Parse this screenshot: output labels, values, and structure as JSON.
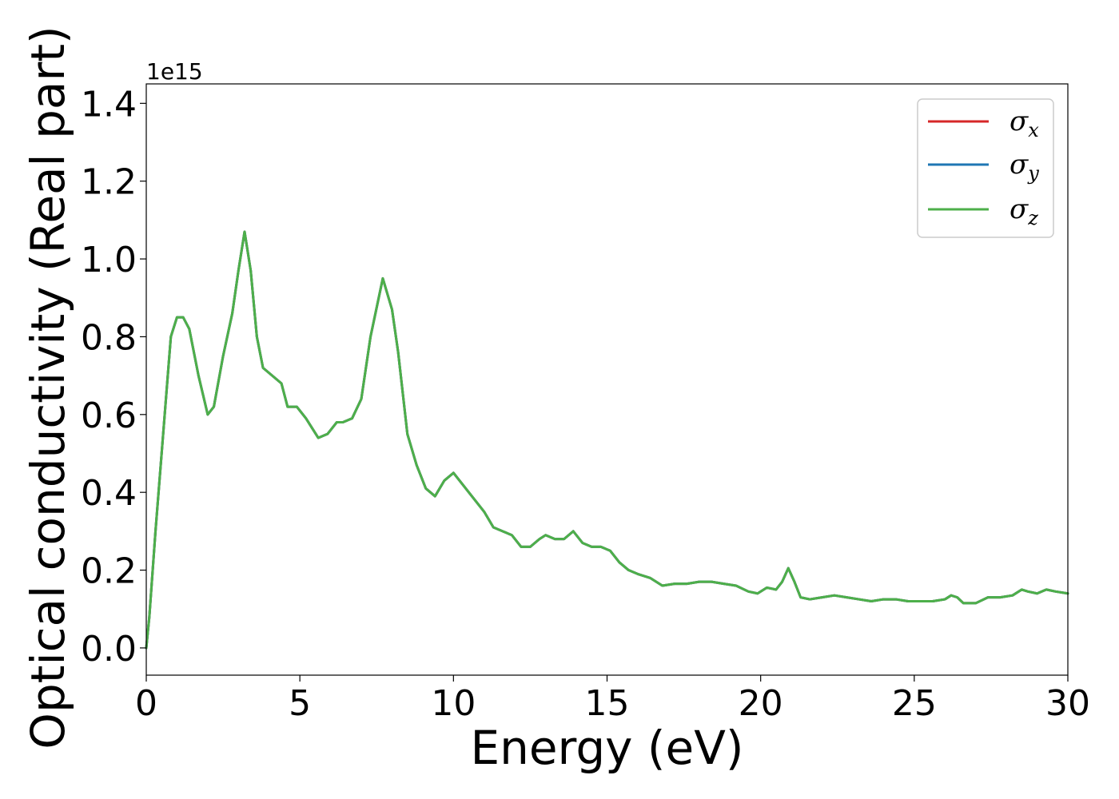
{
  "chart_data": {
    "type": "line",
    "title": "",
    "xlabel": "Energy (eV)",
    "ylabel": "Optical conductivity (Real part)",
    "y_offset_label": "1e15",
    "xlim": [
      0,
      30
    ],
    "ylim": [
      -0.07,
      1.45
    ],
    "x_ticks": [
      0,
      5,
      10,
      15,
      20,
      25,
      30
    ],
    "x_tick_labels": [
      "0",
      "5",
      "10",
      "15",
      "20",
      "25",
      "30"
    ],
    "y_ticks": [
      0.0,
      0.2,
      0.4,
      0.6,
      0.8,
      1.0,
      1.2,
      1.4
    ],
    "y_tick_labels": [
      "0.0",
      "0.2",
      "0.4",
      "0.6",
      "0.8",
      "1.0",
      "1.2",
      "1.4"
    ],
    "grid": false,
    "legend_position": "top-right",
    "x": [
      0.0,
      0.1,
      0.3,
      0.6,
      0.8,
      1.0,
      1.2,
      1.4,
      1.7,
      2.0,
      2.2,
      2.5,
      2.8,
      3.0,
      3.2,
      3.4,
      3.6,
      3.8,
      4.1,
      4.4,
      4.6,
      4.9,
      5.2,
      5.6,
      5.9,
      6.2,
      6.4,
      6.7,
      7.0,
      7.3,
      7.7,
      8.0,
      8.2,
      8.5,
      8.8,
      9.1,
      9.4,
      9.7,
      10.0,
      10.3,
      10.6,
      11.0,
      11.3,
      11.6,
      11.9,
      12.2,
      12.5,
      12.8,
      13.0,
      13.3,
      13.6,
      13.9,
      14.2,
      14.5,
      14.8,
      15.1,
      15.4,
      15.7,
      16.0,
      16.4,
      16.8,
      17.2,
      17.6,
      18.0,
      18.4,
      18.8,
      19.2,
      19.6,
      19.9,
      20.2,
      20.5,
      20.7,
      20.9,
      21.1,
      21.3,
      21.6,
      22.0,
      22.4,
      22.8,
      23.2,
      23.6,
      24.0,
      24.4,
      24.8,
      25.2,
      25.6,
      26.0,
      26.2,
      26.4,
      26.6,
      27.0,
      27.4,
      27.8,
      28.2,
      28.5,
      28.7,
      29.0,
      29.3,
      29.6,
      30.0
    ],
    "series": [
      {
        "name": "σx",
        "color": "#d62728",
        "values": [
          0.0,
          0.08,
          0.3,
          0.6,
          0.8,
          0.85,
          0.85,
          0.82,
          0.7,
          0.6,
          0.62,
          0.75,
          0.86,
          0.97,
          1.07,
          0.97,
          0.8,
          0.72,
          0.7,
          0.68,
          0.62,
          0.62,
          0.59,
          0.54,
          0.55,
          0.58,
          0.58,
          0.59,
          0.64,
          0.8,
          0.95,
          0.87,
          0.76,
          0.55,
          0.47,
          0.41,
          0.39,
          0.43,
          0.45,
          0.42,
          0.39,
          0.35,
          0.31,
          0.3,
          0.29,
          0.26,
          0.26,
          0.28,
          0.29,
          0.28,
          0.28,
          0.3,
          0.27,
          0.26,
          0.26,
          0.25,
          0.22,
          0.2,
          0.19,
          0.18,
          0.16,
          0.165,
          0.165,
          0.17,
          0.17,
          0.165,
          0.16,
          0.145,
          0.14,
          0.155,
          0.15,
          0.17,
          0.205,
          0.17,
          0.13,
          0.125,
          0.13,
          0.135,
          0.13,
          0.125,
          0.12,
          0.125,
          0.125,
          0.12,
          0.12,
          0.12,
          0.125,
          0.135,
          0.13,
          0.115,
          0.115,
          0.13,
          0.13,
          0.135,
          0.15,
          0.145,
          0.14,
          0.15,
          0.145,
          0.14
        ]
      },
      {
        "name": "σy",
        "color": "#1f77b4",
        "values": [
          0.0,
          0.08,
          0.3,
          0.6,
          0.8,
          0.85,
          0.85,
          0.82,
          0.7,
          0.6,
          0.62,
          0.75,
          0.86,
          0.97,
          1.07,
          0.97,
          0.8,
          0.72,
          0.7,
          0.68,
          0.62,
          0.62,
          0.59,
          0.54,
          0.55,
          0.58,
          0.58,
          0.59,
          0.64,
          0.8,
          0.95,
          0.87,
          0.76,
          0.55,
          0.47,
          0.41,
          0.39,
          0.43,
          0.45,
          0.42,
          0.39,
          0.35,
          0.31,
          0.3,
          0.29,
          0.26,
          0.26,
          0.28,
          0.29,
          0.28,
          0.28,
          0.3,
          0.27,
          0.26,
          0.26,
          0.25,
          0.22,
          0.2,
          0.19,
          0.18,
          0.16,
          0.165,
          0.165,
          0.17,
          0.17,
          0.165,
          0.16,
          0.145,
          0.14,
          0.155,
          0.15,
          0.17,
          0.205,
          0.17,
          0.13,
          0.125,
          0.13,
          0.135,
          0.13,
          0.125,
          0.12,
          0.125,
          0.125,
          0.12,
          0.12,
          0.12,
          0.125,
          0.135,
          0.13,
          0.115,
          0.115,
          0.13,
          0.13,
          0.135,
          0.15,
          0.145,
          0.14,
          0.15,
          0.145,
          0.14
        ]
      },
      {
        "name": "σz",
        "color": "#4daf4a",
        "values": [
          0.0,
          0.08,
          0.3,
          0.6,
          0.8,
          0.85,
          0.85,
          0.82,
          0.7,
          0.6,
          0.62,
          0.75,
          0.86,
          0.97,
          1.07,
          0.97,
          0.8,
          0.72,
          0.7,
          0.68,
          0.62,
          0.62,
          0.59,
          0.54,
          0.55,
          0.58,
          0.58,
          0.59,
          0.64,
          0.8,
          0.95,
          0.87,
          0.76,
          0.55,
          0.47,
          0.41,
          0.39,
          0.43,
          0.45,
          0.42,
          0.39,
          0.35,
          0.31,
          0.3,
          0.29,
          0.26,
          0.26,
          0.28,
          0.29,
          0.28,
          0.28,
          0.3,
          0.27,
          0.26,
          0.26,
          0.25,
          0.22,
          0.2,
          0.19,
          0.18,
          0.16,
          0.165,
          0.165,
          0.17,
          0.17,
          0.165,
          0.16,
          0.145,
          0.14,
          0.155,
          0.15,
          0.17,
          0.205,
          0.17,
          0.13,
          0.125,
          0.13,
          0.135,
          0.13,
          0.125,
          0.12,
          0.125,
          0.125,
          0.12,
          0.12,
          0.12,
          0.125,
          0.135,
          0.13,
          0.115,
          0.115,
          0.13,
          0.13,
          0.135,
          0.15,
          0.145,
          0.14,
          0.15,
          0.145,
          0.14
        ]
      }
    ],
    "legend": [
      {
        "symbol": "σ",
        "sub": "x",
        "color": "#d62728"
      },
      {
        "symbol": "σ",
        "sub": "y",
        "color": "#1f77b4"
      },
      {
        "symbol": "σ",
        "sub": "z",
        "color": "#4daf4a"
      }
    ]
  }
}
